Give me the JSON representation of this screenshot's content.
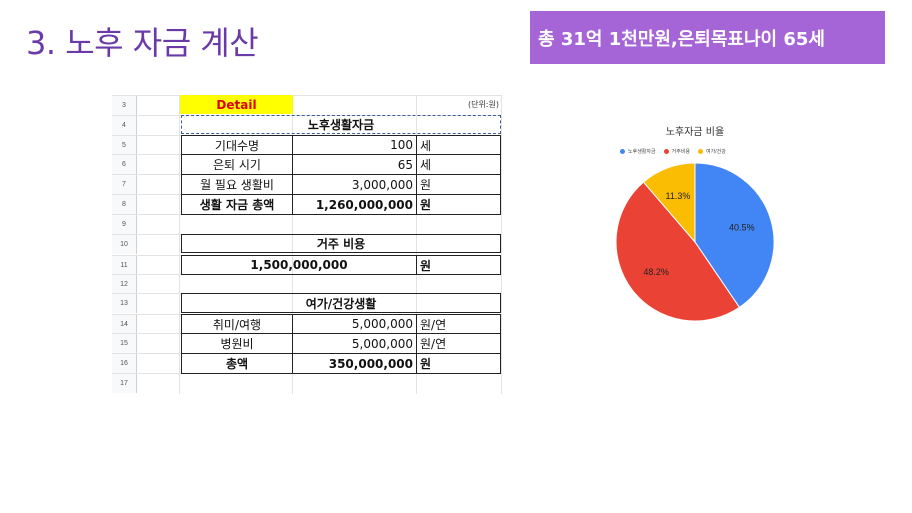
{
  "slide": {
    "title": "3. 노후 자금 계산",
    "banner": "총 31억 1천만원,은퇴목표나이 65세"
  },
  "sheet": {
    "row_numbers": [
      "3",
      "4",
      "5",
      "6",
      "7",
      "8",
      "9",
      "10",
      "11",
      "12",
      "13",
      "14",
      "15",
      "16",
      "17"
    ],
    "detail": "Detail",
    "unit_note": "(단위:원)",
    "living_header": "노후생활자금",
    "life_expectancy_label": "기대수명",
    "life_expectancy_value": "100",
    "life_expectancy_unit": "세",
    "retire_age_label": "은퇴 시기",
    "retire_age_value": "65",
    "retire_age_unit": "세",
    "monthly_label": "월 필요 생활비",
    "monthly_value": "3,000,000",
    "monthly_unit": "원",
    "living_total_label": "생활 자금 총액",
    "living_total_value": "1,260,000,000",
    "living_total_unit": "원",
    "housing_header": "거주 비용",
    "housing_value": "1,500,000,000",
    "housing_unit": "원",
    "leisure_header": "여가/건강생활",
    "hobby_label": "취미/여행",
    "hobby_value": "5,000,000",
    "hobby_unit": "원/연",
    "hospital_label": "병원비",
    "hospital_value": "5,000,000",
    "hospital_unit": "원/연",
    "leisure_total_label": "총액",
    "leisure_total_value": "350,000,000",
    "leisure_total_unit": "원"
  },
  "chart_data": {
    "type": "pie",
    "title": "노후자금 비율",
    "legend_position": "top",
    "categories": [
      "노후생활자금",
      "거주비용",
      "여가/건강"
    ],
    "values": [
      40.5,
      48.2,
      11.3
    ],
    "labels": [
      "40.5%",
      "48.2%",
      "11.3%"
    ],
    "colors": [
      "#4285f4",
      "#ea4335",
      "#fbbc04"
    ]
  }
}
